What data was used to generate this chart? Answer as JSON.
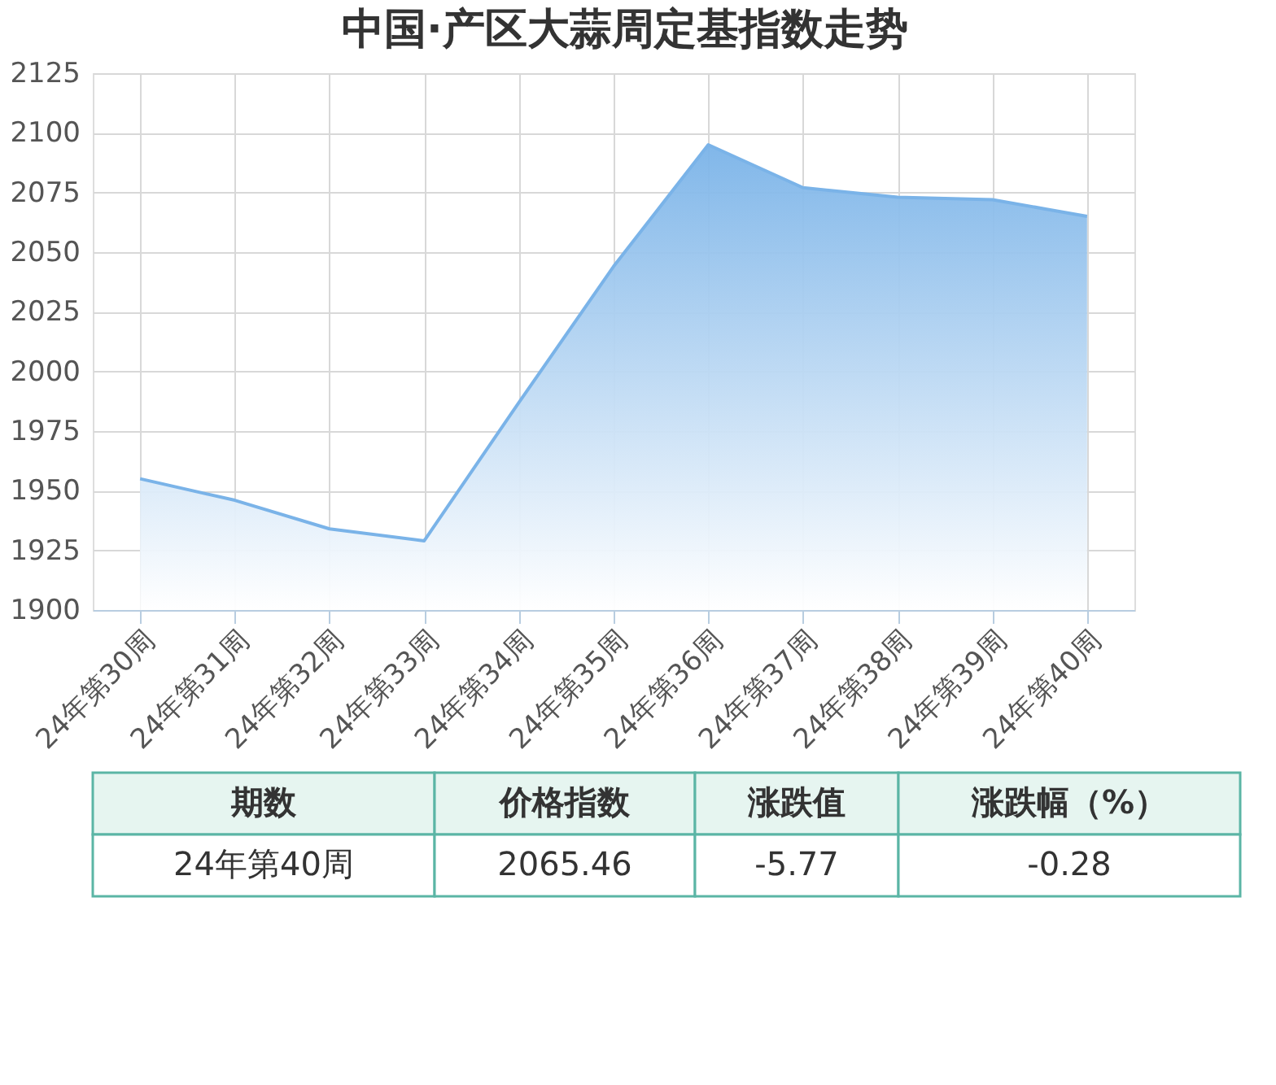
{
  "chart_data": {
    "type": "area",
    "title": "中国·产区大蒜周定基指数走势",
    "categories": [
      "24年第30周",
      "24年第31周",
      "24年第32周",
      "24年第33周",
      "24年第34周",
      "24年第35周",
      "24年第36周",
      "24年第37周",
      "24年第38周",
      "24年第39周",
      "24年第40周"
    ],
    "series": [
      {
        "color": "#7ab3e8",
        "values": [
          1955,
          1946,
          1934,
          1929,
          1987,
          2044,
          2095,
          2077,
          2073,
          2072,
          2065
        ]
      }
    ],
    "ylim": [
      1900,
      2125
    ],
    "yticks": [
      1900,
      1925,
      1950,
      1975,
      2000,
      2025,
      2050,
      2075,
      2100,
      2125
    ],
    "grid": true,
    "annotations": [
      "期数",
      "价格指数",
      "涨跌值",
      "涨跌幅（%）",
      "24年第40周",
      "2065.46",
      "-5.77",
      "-0.28"
    ]
  }
}
